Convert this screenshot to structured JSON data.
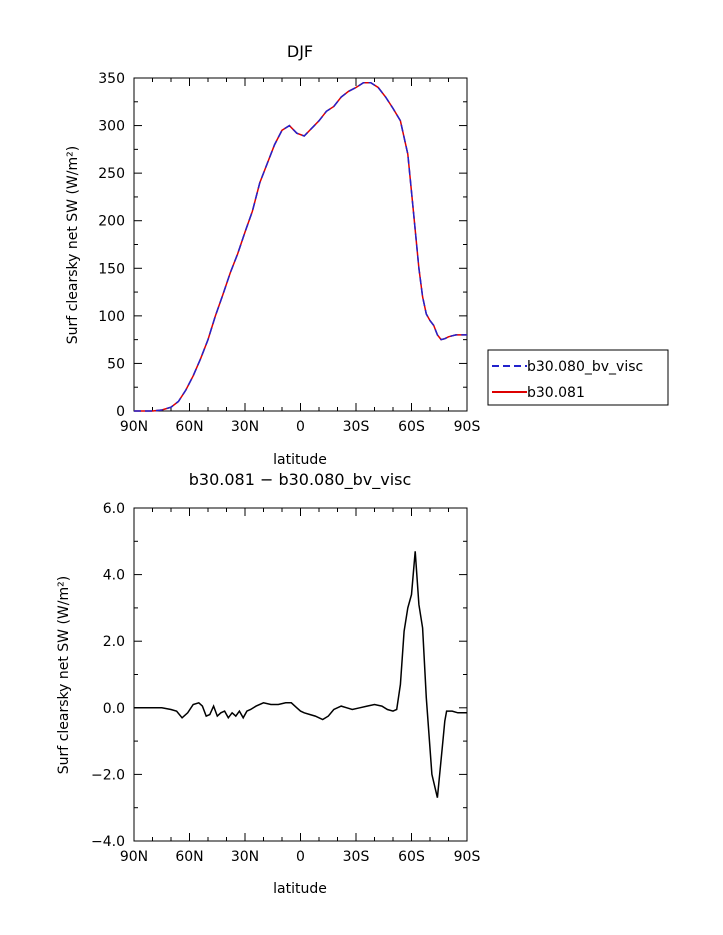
{
  "chart_data": [
    {
      "type": "line",
      "title": "DJF",
      "xlabel": "latitude",
      "ylabel": "Surf clearsky net SW (W/m²)",
      "xlim": [
        -90,
        90
      ],
      "ylim": [
        0,
        350
      ],
      "x_ticks": [
        {
          "value": -90,
          "label": "90N"
        },
        {
          "value": -60,
          "label": "60N"
        },
        {
          "value": -30,
          "label": "30N"
        },
        {
          "value": 0,
          "label": "0"
        },
        {
          "value": 30,
          "label": "30S"
        },
        {
          "value": 60,
          "label": "60S"
        },
        {
          "value": 90,
          "label": "90S"
        }
      ],
      "y_ticks": [
        {
          "value": 0,
          "label": "0"
        },
        {
          "value": 50,
          "label": "50"
        },
        {
          "value": 100,
          "label": "100"
        },
        {
          "value": 150,
          "label": "150"
        },
        {
          "value": 200,
          "label": "200"
        },
        {
          "value": 250,
          "label": "250"
        },
        {
          "value": 300,
          "label": "300"
        },
        {
          "value": 350,
          "label": "350"
        }
      ],
      "legend_position": "right",
      "x": [
        -90,
        -85,
        -80,
        -75,
        -70,
        -66,
        -62,
        -58,
        -54,
        -50,
        -46,
        -42,
        -38,
        -34,
        -30,
        -26,
        -22,
        -18,
        -14,
        -10,
        -6,
        -2,
        2,
        6,
        10,
        14,
        18,
        22,
        26,
        30,
        34,
        38,
        42,
        46,
        50,
        54,
        58,
        61,
        64,
        66,
        68,
        70,
        72,
        74,
        76,
        78,
        80,
        82,
        84,
        86,
        88,
        90
      ],
      "series": [
        {
          "name": "b30.080_bv_visc",
          "color": "#2222cc",
          "dash": "dashed",
          "values": [
            0,
            0,
            0,
            1,
            4,
            10,
            22,
            37,
            55,
            75,
            100,
            122,
            145,
            165,
            188,
            210,
            240,
            260,
            280,
            295,
            300,
            292,
            289,
            297,
            305,
            315,
            320,
            330,
            336,
            340,
            345,
            345,
            340,
            330,
            318,
            305,
            270,
            210,
            150,
            120,
            102,
            95,
            90,
            80,
            75,
            76,
            78,
            79,
            80,
            80,
            80,
            80
          ]
        },
        {
          "name": "b30.081",
          "color": "#dd0000",
          "dash": "solid",
          "values": [
            0,
            0,
            0,
            1,
            4,
            10,
            22,
            37,
            55,
            75,
            100,
            122,
            145,
            165,
            188,
            210,
            240,
            260,
            280,
            295,
            300,
            292,
            289,
            297,
            305,
            315,
            320,
            330,
            336,
            340,
            345,
            345,
            340,
            330,
            318,
            305,
            270,
            210,
            150,
            120,
            102,
            95,
            90,
            80,
            75,
            76,
            78,
            79,
            80,
            80,
            80,
            80
          ]
        }
      ]
    },
    {
      "type": "line",
      "title": "b30.081 − b30.080_bv_visc",
      "xlabel": "latitude",
      "ylabel": "Surf clearsky net SW (W/m²)",
      "xlim": [
        -90,
        90
      ],
      "ylim": [
        -4,
        6
      ],
      "x_ticks": [
        {
          "value": -90,
          "label": "90N"
        },
        {
          "value": -60,
          "label": "60N"
        },
        {
          "value": -30,
          "label": "30N"
        },
        {
          "value": 0,
          "label": "0"
        },
        {
          "value": 30,
          "label": "30S"
        },
        {
          "value": 60,
          "label": "60S"
        },
        {
          "value": 90,
          "label": "90S"
        }
      ],
      "y_ticks": [
        {
          "value": -4,
          "label": "−4.0"
        },
        {
          "value": -2,
          "label": "−2.0"
        },
        {
          "value": 0,
          "label": "0.0"
        },
        {
          "value": 2,
          "label": "2.0"
        },
        {
          "value": 4,
          "label": "4.0"
        },
        {
          "value": 6,
          "label": "6.0"
        }
      ],
      "series": [
        {
          "color": "#000000",
          "dash": "solid",
          "x": [
            -90,
            -75,
            -70,
            -67,
            -64,
            -61,
            -58,
            -55,
            -53,
            -51,
            -49,
            -47,
            -45,
            -43,
            -41,
            -39,
            -37,
            -35,
            -33,
            -31,
            -29,
            -27,
            -24,
            -20,
            -16,
            -12,
            -8,
            -5,
            -2,
            0,
            2,
            5,
            8,
            12,
            15,
            18,
            22,
            25,
            28,
            32,
            36,
            40,
            44,
            47,
            50,
            52,
            54,
            56,
            58,
            60,
            62,
            64,
            66,
            68,
            71,
            74,
            77,
            78,
            79,
            80,
            82,
            85,
            90
          ],
          "values": [
            0,
            0,
            -0.05,
            -0.1,
            -0.3,
            -0.15,
            0.1,
            0.15,
            0.05,
            -0.25,
            -0.2,
            0.05,
            -0.25,
            -0.15,
            -0.1,
            -0.3,
            -0.15,
            -0.25,
            -0.1,
            -0.3,
            -0.1,
            -0.05,
            0.05,
            0.15,
            0.1,
            0.1,
            0.15,
            0.15,
            0,
            -0.1,
            -0.15,
            -0.2,
            -0.25,
            -0.35,
            -0.25,
            -0.05,
            0.05,
            0,
            -0.05,
            0,
            0.05,
            0.1,
            0.05,
            -0.05,
            -0.1,
            -0.05,
            0.7,
            2.3,
            3.0,
            3.4,
            4.7,
            3.1,
            2.4,
            0.3,
            -2.0,
            -2.7,
            -1.0,
            -0.4,
            -0.1,
            -0.1,
            -0.1,
            -0.15,
            -0.15
          ]
        }
      ]
    }
  ]
}
